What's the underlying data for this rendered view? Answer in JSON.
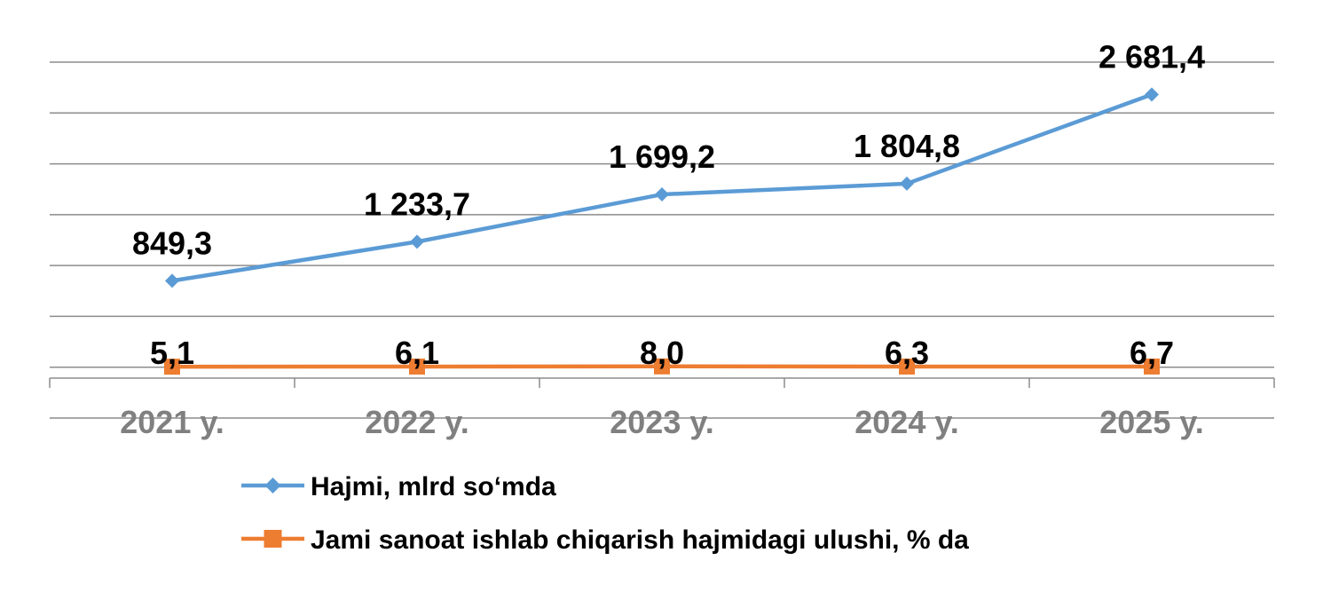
{
  "chart_data": {
    "type": "line",
    "categories": [
      "2021 y.",
      "2022 y.",
      "2023 y.",
      "2024 y.",
      "2025 y."
    ],
    "series": [
      {
        "name": "Hajmi, mlrd so‘mda",
        "values": [
          849.3,
          1233.7,
          1699.2,
          1804.8,
          2681.4
        ],
        "labels": [
          "849,3",
          "1 233,7",
          "1 699,2",
          "1 804,8",
          "2 681,4"
        ],
        "color": "#5b9bd5",
        "marker": "diamond"
      },
      {
        "name": "Jami sanoat ishlab chiqarish hajmidagi ulushi, % da",
        "values": [
          5.1,
          6.1,
          8.0,
          6.3,
          6.7
        ],
        "labels": [
          "5,1",
          "6,1",
          "8,0",
          "6,3",
          "6,7"
        ],
        "color": "#ed7d31",
        "marker": "square"
      }
    ],
    "ylim": [
      -500,
      3000
    ],
    "grid": true,
    "legend_position": "bottom"
  }
}
